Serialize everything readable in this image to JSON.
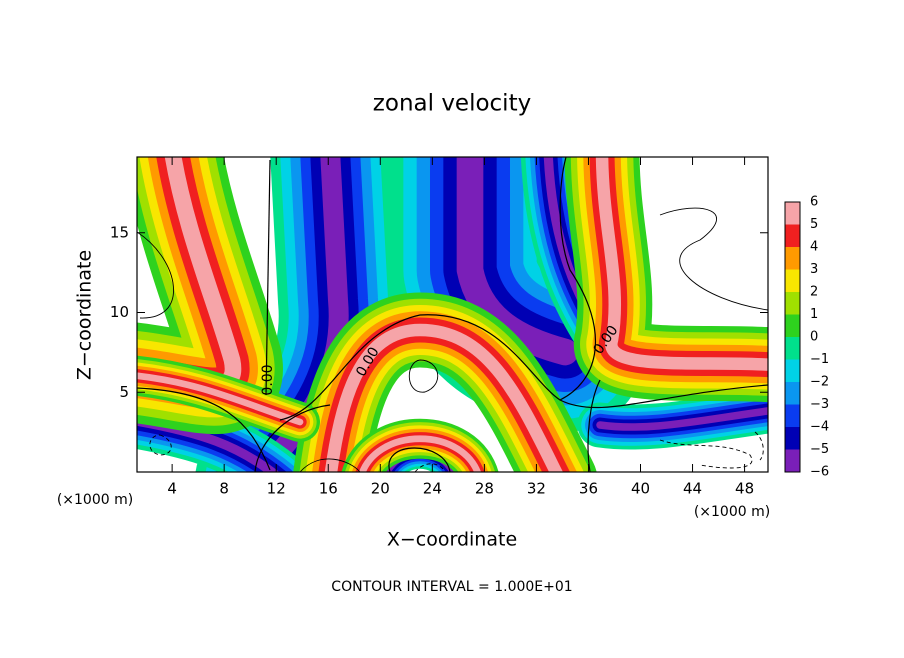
{
  "chart_data": {
    "type": "contour",
    "title": "zonal velocity",
    "xlabel": "X−coordinate",
    "ylabel": "Z−coordinate",
    "x_unit": "(×1000 m)",
    "footer": "CONTOUR INTERVAL = 1.000E+01",
    "xlim": [
      1.3,
      49.8
    ],
    "ylim": [
      0,
      19.75
    ],
    "xticks": [
      4,
      8,
      12,
      16,
      20,
      24,
      28,
      32,
      36,
      40,
      44,
      48
    ],
    "yticks": [
      5,
      10,
      15
    ],
    "contour_levels": [
      -10,
      0,
      10
    ],
    "contour_label": {
      "value": 0,
      "label": "0.00"
    },
    "colorbar": {
      "levels": [
        -6,
        -5,
        -4,
        -3,
        -2,
        -1,
        0,
        1,
        2,
        3,
        4,
        5,
        6
      ],
      "labels": [
        {
          "value": -6,
          "label": "−6"
        },
        {
          "value": -5,
          "label": "−5"
        },
        {
          "value": -4,
          "label": "−4"
        },
        {
          "value": -3,
          "label": "−3"
        },
        {
          "value": -2,
          "label": "−2"
        },
        {
          "value": -1,
          "label": "−1"
        },
        0,
        1,
        2,
        3,
        4,
        5,
        6
      ],
      "colors": [
        "#7a1fb8",
        "#0000b4",
        "#0a3cf0",
        "#0a96f0",
        "#00d2e6",
        "#00e08c",
        "#2ed21e",
        "#a0e000",
        "#f8e600",
        "#ff9a00",
        "#f02020",
        "#f6a4a8"
      ]
    }
  }
}
